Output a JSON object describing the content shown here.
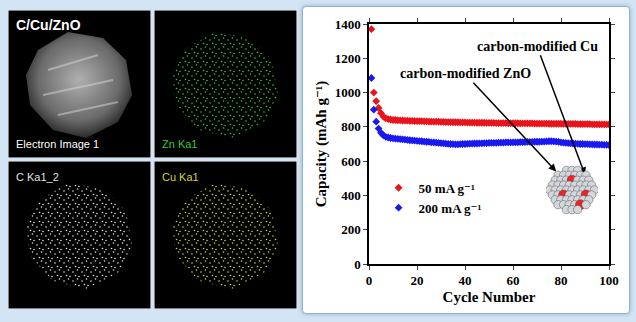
{
  "chart_data": {
    "type": "scatter",
    "x": [
      1,
      2,
      3,
      4,
      5,
      6,
      7,
      8,
      9,
      10,
      11,
      12,
      13,
      14,
      15,
      16,
      17,
      18,
      19,
      20,
      21,
      22,
      23,
      24,
      25,
      26,
      27,
      28,
      29,
      30,
      31,
      32,
      33,
      34,
      35,
      36,
      37,
      38,
      39,
      40,
      41,
      42,
      43,
      44,
      45,
      46,
      47,
      48,
      49,
      50,
      51,
      52,
      53,
      54,
      55,
      56,
      57,
      58,
      59,
      60,
      61,
      62,
      63,
      64,
      65,
      66,
      67,
      68,
      69,
      70,
      71,
      72,
      73,
      74,
      75,
      76,
      77,
      78,
      79,
      80,
      81,
      82,
      83,
      84,
      85,
      86,
      87,
      88,
      89,
      90,
      91,
      92,
      93,
      94,
      95,
      96,
      97,
      98,
      99,
      100
    ],
    "series": [
      {
        "name": "50 mA g⁻¹",
        "color": "#e8141c",
        "marker": "diamond",
        "values": [
          1370,
          1000,
          950,
          910,
          880,
          860,
          850,
          845,
          843,
          840,
          840,
          838,
          838,
          837,
          836,
          836,
          835,
          835,
          834,
          834,
          833,
          833,
          832,
          832,
          831,
          831,
          830,
          830,
          830,
          829,
          829,
          828,
          828,
          828,
          827,
          827,
          827,
          826,
          826,
          826,
          825,
          825,
          825,
          825,
          824,
          824,
          824,
          824,
          823,
          823,
          823,
          823,
          822,
          822,
          822,
          822,
          822,
          821,
          821,
          821,
          821,
          821,
          820,
          820,
          820,
          820,
          820,
          820,
          819,
          819,
          819,
          819,
          819,
          819,
          818,
          818,
          818,
          818,
          818,
          818,
          817,
          817,
          817,
          817,
          817,
          817,
          816,
          816,
          816,
          816,
          816,
          816,
          815,
          815,
          815,
          815,
          815,
          815,
          814,
          814
        ]
      },
      {
        "name": "200 mA g⁻¹",
        "color": "#1a1aee",
        "marker": "diamond",
        "values": [
          1085,
          900,
          830,
          790,
          765,
          750,
          742,
          738,
          735,
          733,
          731,
          730,
          728,
          727,
          725,
          724,
          722,
          721,
          720,
          718,
          717,
          716,
          714,
          713,
          712,
          710,
          709,
          708,
          706,
          705,
          704,
          702,
          701,
          700,
          699,
          698,
          698,
          699,
          700,
          700,
          701,
          702,
          702,
          703,
          703,
          704,
          704,
          705,
          705,
          706,
          706,
          707,
          707,
          708,
          708,
          708,
          709,
          709,
          709,
          710,
          710,
          710,
          711,
          711,
          711,
          712,
          712,
          712,
          713,
          713,
          713,
          714,
          714,
          715,
          716,
          716,
          715,
          714,
          712,
          710,
          708,
          706,
          705,
          704,
          703,
          702,
          701,
          700,
          700,
          699,
          699,
          698,
          698,
          697,
          697,
          696,
          696,
          695,
          695,
          694
        ]
      }
    ],
    "xlabel": "Cycle Number",
    "ylabel": "Capacity (mAh g⁻¹)",
    "xlim": [
      0,
      100
    ],
    "ylim": [
      0,
      1400
    ],
    "xticks": [
      0,
      20,
      40,
      60,
      80,
      100
    ],
    "yticks": [
      0,
      200,
      400,
      600,
      800,
      1000,
      1200,
      1400
    ],
    "legend": "lower left",
    "grid": false,
    "annotations": [
      "carbon-modified Cu",
      "carbon-modified ZnO"
    ]
  },
  "eds_maps": {
    "title": "C/Cu/ZnO",
    "images": [
      {
        "label": "Electron Image 1",
        "color": "#ffffff"
      },
      {
        "label": "Zn Ka1",
        "color": "#33cc33"
      },
      {
        "label": "C Ka1_2",
        "color": "#e0e0e0"
      },
      {
        "label": "Cu Ka1",
        "color": "#d6d633"
      }
    ]
  }
}
